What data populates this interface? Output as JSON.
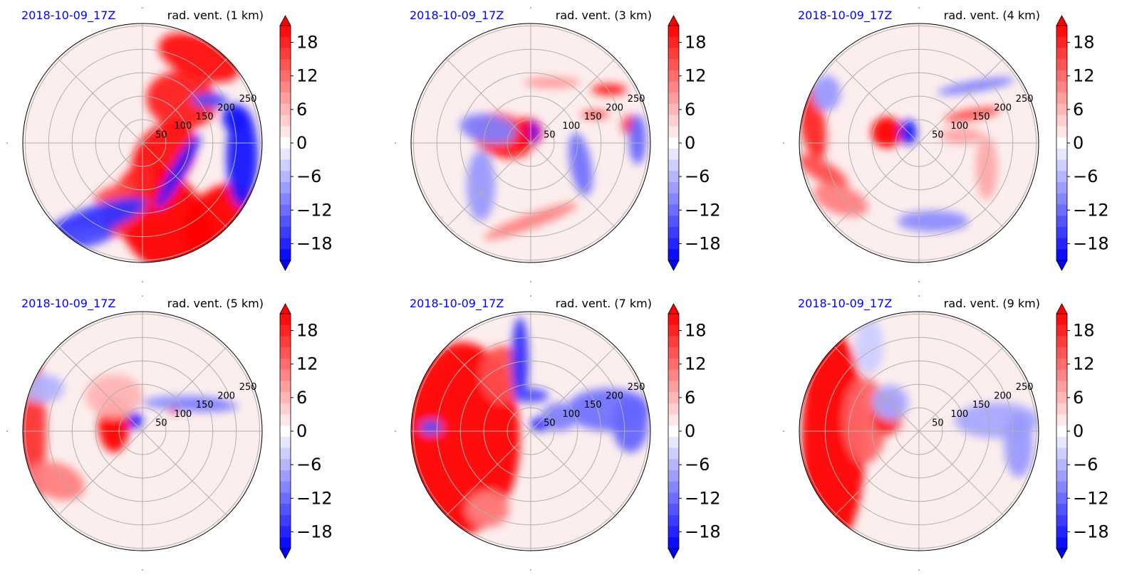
{
  "figure": {
    "colormap": {
      "negative_color": "#0000ff",
      "positive_color": "#ff0000",
      "neutral_color": "#ffffff"
    }
  },
  "chart_data": [
    {
      "type": "heatmap",
      "subtype": "polar",
      "date": "2018-10-09_17Z",
      "title": "rad. vent. (1 km)",
      "ring_labels": [
        "50",
        "100",
        "150",
        "200",
        "250"
      ],
      "colorbar": {
        "ticks": [
          "18",
          "12",
          "6",
          "0",
          "−6",
          "−12",
          "−18"
        ],
        "range": [
          -21,
          21
        ],
        "extend": "both",
        "levels": 21
      },
      "features": [
        {
          "desc": "strong positive radial wind band, north to south through east (spiral)",
          "sign": "positive"
        },
        {
          "desc": "strong negative radial wind, eastern edge and southwest",
          "sign": "negative"
        }
      ]
    },
    {
      "type": "heatmap",
      "subtype": "polar",
      "date": "2018-10-09_17Z",
      "title": "rad. vent. (3 km)",
      "ring_labels": [
        "50",
        "100",
        "150",
        "200",
        "250"
      ],
      "colorbar": {
        "ticks": [
          "18",
          "12",
          "6",
          "0",
          "−6",
          "−12",
          "−18"
        ],
        "range": [
          -21,
          21
        ],
        "extend": "both",
        "levels": 21
      },
      "features": [
        {
          "desc": "positive radial wind core west of center",
          "sign": "positive"
        },
        {
          "desc": "weak scattered features elsewhere",
          "sign": "mixed"
        }
      ]
    },
    {
      "type": "heatmap",
      "subtype": "polar",
      "date": "2018-10-09_17Z",
      "title": "rad. vent. (4 km)",
      "ring_labels": [
        "50",
        "100",
        "150",
        "200",
        "250"
      ],
      "colorbar": {
        "ticks": [
          "18",
          "12",
          "6",
          "0",
          "−6",
          "−12",
          "−18"
        ],
        "range": [
          -21,
          21
        ],
        "extend": "both",
        "levels": 21
      },
      "features": [
        {
          "desc": "positive core near center, positive streaks at west edge",
          "sign": "positive"
        },
        {
          "desc": "negative feature just east of center",
          "sign": "negative"
        }
      ]
    },
    {
      "type": "heatmap",
      "subtype": "polar",
      "date": "2018-10-09_17Z",
      "title": "rad. vent. (5 km)",
      "ring_labels": [
        "50",
        "100",
        "150",
        "200",
        "250"
      ],
      "colorbar": {
        "ticks": [
          "18",
          "12",
          "6",
          "0",
          "−6",
          "−12",
          "−18"
        ],
        "range": [
          -21,
          21
        ],
        "extend": "both",
        "levels": 21
      },
      "features": [
        {
          "desc": "positive core west of center, positive band along west edge",
          "sign": "positive"
        },
        {
          "desc": "small negative spots near center",
          "sign": "negative"
        }
      ]
    },
    {
      "type": "heatmap",
      "subtype": "polar",
      "date": "2018-10-09_17Z",
      "title": "rad. vent. (7 km)",
      "ring_labels": [
        "50",
        "100",
        "150",
        "200",
        "250"
      ],
      "colorbar": {
        "ticks": [
          "18",
          "12",
          "6",
          "0",
          "−6",
          "−12",
          "−18"
        ],
        "range": [
          -21,
          21
        ],
        "extend": "both",
        "levels": 21
      },
      "features": [
        {
          "desc": "strong positive outflow covering western half",
          "sign": "positive"
        },
        {
          "desc": "negative patches north and east",
          "sign": "negative"
        }
      ]
    },
    {
      "type": "heatmap",
      "subtype": "polar",
      "date": "2018-10-09_17Z",
      "title": "rad. vent. (9 km)",
      "ring_labels": [
        "50",
        "100",
        "150",
        "200",
        "250"
      ],
      "colorbar": {
        "ticks": [
          "18",
          "12",
          "6",
          "0",
          "−6",
          "−12",
          "−18"
        ],
        "range": [
          -21,
          21
        ],
        "extend": "both",
        "levels": 21
      },
      "features": [
        {
          "desc": "strong positive outflow along western edge",
          "sign": "positive"
        },
        {
          "desc": "weak negative band east",
          "sign": "negative"
        }
      ]
    }
  ]
}
